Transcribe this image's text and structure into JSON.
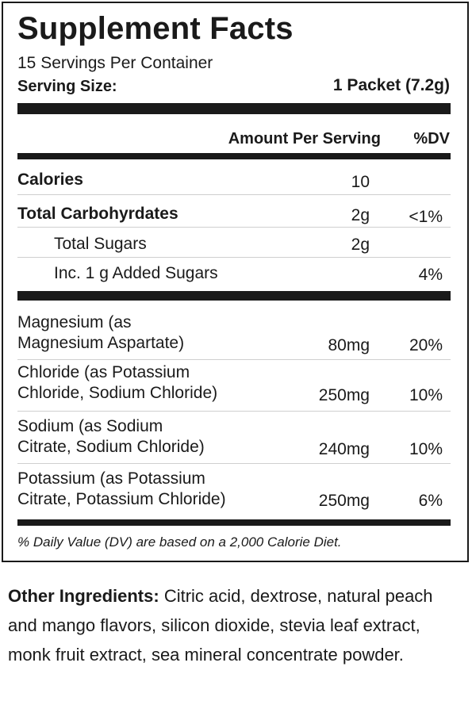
{
  "title": "Supplement Facts",
  "servings_per_container": "15 Servings Per Container",
  "serving_size": {
    "label": "Serving Size:",
    "value": "1 Packet (7.2g)"
  },
  "header": {
    "amount_label": "Amount Per Serving",
    "dv_label": "%DV"
  },
  "rows_primary": [
    {
      "name": "Calories",
      "amount": "10",
      "dv": ""
    },
    {
      "name": "Total Carbohyrdates",
      "amount": "2g",
      "dv": "<1%"
    },
    {
      "name": "Total Sugars",
      "amount": "2g",
      "dv": ""
    },
    {
      "name": "Inc. 1 g Added Sugars",
      "amount": "",
      "dv": "4%"
    }
  ],
  "rows_minerals": [
    {
      "line1": "Magnesium (as",
      "line2": "Magnesium Aspartate)",
      "amount": "80mg",
      "dv": "20%"
    },
    {
      "line1": "Chloride (as Potassium",
      "line2": "Chloride, Sodium Chloride)",
      "amount": "250mg",
      "dv": "10%"
    },
    {
      "line1": "Sodium (as Sodium",
      "line2": "Citrate, Sodium Chloride)",
      "amount": "240mg",
      "dv": "10%"
    },
    {
      "line1": "Potassium (as Potassium",
      "line2": "Citrate, Potassium Chloride)",
      "amount": "250mg",
      "dv": "6%"
    }
  ],
  "footnote": "% Daily Value (DV) are based on a 2,000 Calorie Diet.",
  "other_ingredients": {
    "label": "Other Ingredients:",
    "text": "Citric acid, dextrose, natural peach and mango flavors, silicon dioxide, stevia leaf extract, monk fruit extract, sea mineral concentrate powder."
  }
}
